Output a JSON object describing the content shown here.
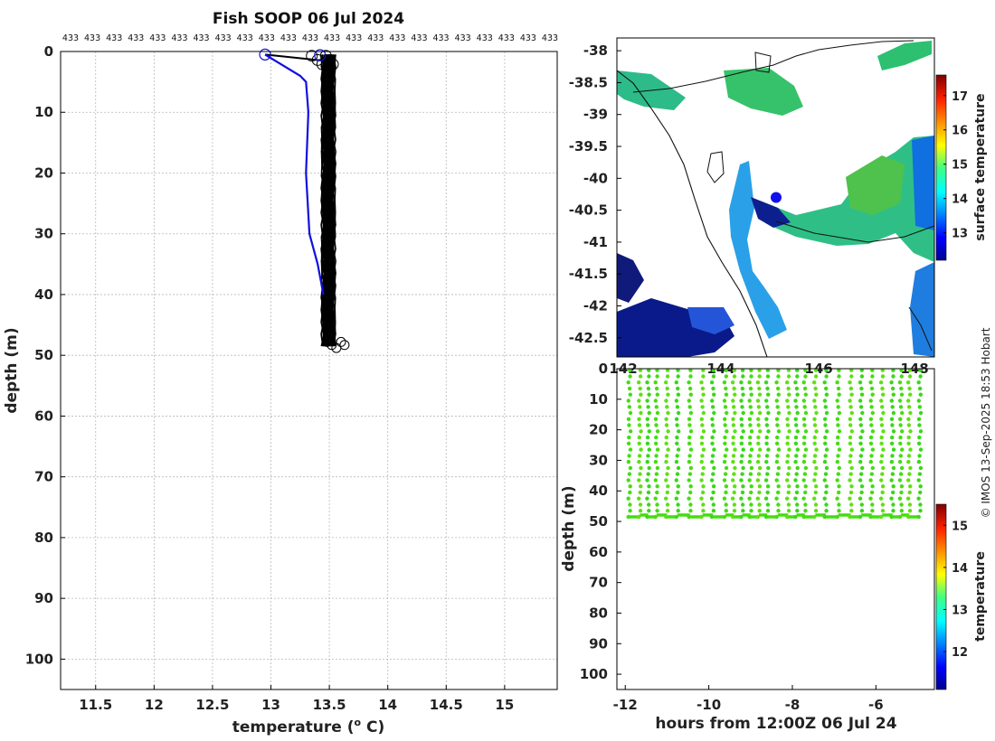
{
  "chart_data": [
    {
      "id": "profile",
      "type": "line",
      "title": "Fish SOOP 06 Jul 2024",
      "xlabel_base": "temperature (",
      "xlabel_sup": "o",
      "xlabel_tail": " C)",
      "ylabel": "depth (m)",
      "xlim": [
        11.2,
        15.45
      ],
      "ylim": [
        0,
        105
      ],
      "xticks": [
        "11.5",
        "12",
        "12.5",
        "13",
        "13.5",
        "14",
        "14.5",
        "15"
      ],
      "yticks": [
        "0",
        "10",
        "20",
        "30",
        "40",
        "50",
        "60",
        "70",
        "80",
        "90",
        "100"
      ],
      "top_labels": [
        "433",
        "433",
        "433",
        "433",
        "433",
        "433",
        "433",
        "433",
        "433",
        "433",
        "433",
        "433",
        "433",
        "433",
        "433",
        "433",
        "433",
        "433",
        "433",
        "433",
        "433",
        "433",
        "433"
      ],
      "blue_profile": [
        [
          12.95,
          0.5
        ],
        [
          13.25,
          4
        ],
        [
          13.3,
          5
        ],
        [
          13.32,
          10
        ],
        [
          13.3,
          20
        ],
        [
          13.33,
          30
        ],
        [
          13.4,
          35
        ],
        [
          13.45,
          40
        ]
      ],
      "casts_temperature_range": [
        13.43,
        13.58
      ],
      "casts_depth_max": 49,
      "surface_connector": [
        [
          12.95,
          0.5
        ],
        [
          13.45,
          1.5
        ]
      ],
      "line_color": "#000000",
      "highlight_color": "#1010dd"
    },
    {
      "id": "map",
      "type": "heatmap",
      "yticks": [
        "-38",
        "-38.5",
        "-39",
        "-39.5",
        "-40",
        "-40.5",
        "-41",
        "-41.5",
        "-42",
        "-42.5"
      ],
      "xticks_partial": [
        "142",
        "144",
        "146",
        "148"
      ],
      "ylim": [
        -42.8,
        -37.8
      ],
      "colorbar_label": "surface temperature",
      "colorbar_ticks": [
        "13",
        "14",
        "15",
        "16",
        "17"
      ],
      "colorbar_range": [
        12.2,
        17.6
      ],
      "marker_lat": -40.3,
      "marker_color": "#1010ee"
    },
    {
      "id": "section",
      "type": "scatter",
      "xlabel": "hours from 12:00Z 06 Jul 24",
      "ylabel": "depth (m)",
      "xlim": [
        -12.2,
        -4.6
      ],
      "ylim": [
        0,
        105
      ],
      "xticks": [
        "-12",
        "-10",
        "-8",
        "-6"
      ],
      "yticks": [
        "0",
        "10",
        "20",
        "30",
        "40",
        "50",
        "60",
        "70",
        "80",
        "90",
        "100"
      ],
      "cast_hours": [
        -11.9,
        -11.65,
        -11.45,
        -11.25,
        -11.0,
        -10.75,
        -10.45,
        -10.15,
        -9.9,
        -9.6,
        -9.4,
        -9.2,
        -9.0,
        -8.8,
        -8.6,
        -8.35,
        -8.1,
        -7.9,
        -7.7,
        -7.45,
        -7.2,
        -6.9,
        -6.6,
        -6.35,
        -6.1,
        -5.85,
        -5.6,
        -5.4,
        -5.2,
        -4.95
      ],
      "cast_depth_max": 48.5,
      "colorbar_label": "temperature",
      "colorbar_ticks": [
        "12",
        "13",
        "14",
        "15"
      ],
      "colorbar_range": [
        11.1,
        15.5
      ]
    }
  ],
  "credit": "© IMOS 13-Sep-2025 18:53 Hobart"
}
